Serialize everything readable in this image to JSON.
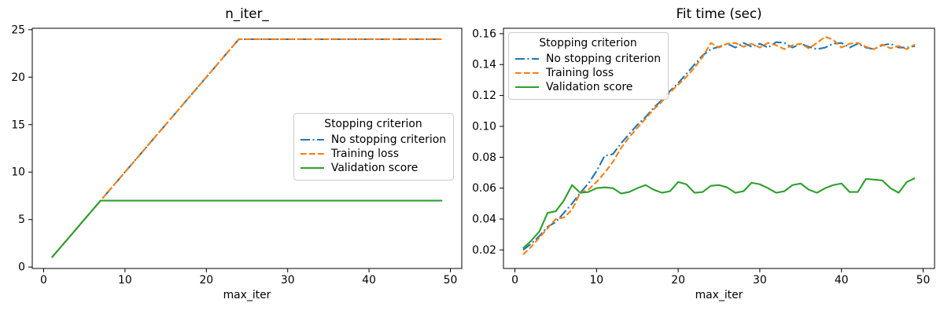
{
  "figure": {
    "kind": "matplotlib-figure",
    "background": "#ffffff",
    "spine_color": "#000000"
  },
  "legend": {
    "title": "Stopping criterion",
    "entries": [
      "No stopping criterion",
      "Training loss",
      "Validation score"
    ]
  },
  "chart_data": [
    {
      "type": "line",
      "title": "n_iter_",
      "xlabel": "max_iter",
      "ylabel": "",
      "grid": false,
      "xlim": [
        -1.4,
        51.4
      ],
      "ylim": [
        -0.15,
        25.15
      ],
      "xticks": [
        0,
        10,
        20,
        30,
        40,
        50
      ],
      "xtick_labels": [
        "0",
        "10",
        "20",
        "30",
        "40",
        "50"
      ],
      "yticks": [
        0,
        5,
        10,
        15,
        20,
        25
      ],
      "ytick_labels": [
        "0",
        "5",
        "10",
        "15",
        "20",
        "25"
      ],
      "legend_location": "center right",
      "x": [
        1,
        2,
        3,
        4,
        5,
        6,
        7,
        8,
        9,
        10,
        11,
        12,
        13,
        14,
        15,
        16,
        17,
        18,
        19,
        20,
        21,
        22,
        23,
        24,
        25,
        26,
        27,
        28,
        29,
        30,
        31,
        32,
        33,
        34,
        35,
        36,
        37,
        38,
        39,
        40,
        41,
        42,
        43,
        44,
        45,
        46,
        47,
        48,
        49
      ],
      "series": [
        {
          "name": "No stopping criterion",
          "color": "#1f77b4",
          "linestyle": "dashdot",
          "values": [
            1,
            2,
            3,
            4,
            5,
            6,
            7,
            8,
            9,
            10,
            11,
            12,
            13,
            14,
            15,
            16,
            17,
            18,
            19,
            20,
            21,
            22,
            23,
            24,
            24,
            24,
            24,
            24,
            24,
            24,
            24,
            24,
            24,
            24,
            24,
            24,
            24,
            24,
            24,
            24,
            24,
            24,
            24,
            24,
            24,
            24,
            24,
            24,
            24
          ]
        },
        {
          "name": "Training loss",
          "color": "#ff7f0e",
          "linestyle": "dashed",
          "values": [
            1,
            2,
            3,
            4,
            5,
            6,
            7,
            8,
            9,
            10,
            11,
            12,
            13,
            14,
            15,
            16,
            17,
            18,
            19,
            20,
            21,
            22,
            23,
            24,
            24,
            24,
            24,
            24,
            24,
            24,
            24,
            24,
            24,
            24,
            24,
            24,
            24,
            24,
            24,
            24,
            24,
            24,
            24,
            24,
            24,
            24,
            24,
            24,
            24
          ]
        },
        {
          "name": "Validation score",
          "color": "#2ca02c",
          "linestyle": "solid",
          "values": [
            1,
            2,
            3,
            4,
            5,
            6,
            7,
            7,
            7,
            7,
            7,
            7,
            7,
            7,
            7,
            7,
            7,
            7,
            7,
            7,
            7,
            7,
            7,
            7,
            7,
            7,
            7,
            7,
            7,
            7,
            7,
            7,
            7,
            7,
            7,
            7,
            7,
            7,
            7,
            7,
            7,
            7,
            7,
            7,
            7,
            7,
            7,
            7,
            7
          ]
        }
      ]
    },
    {
      "type": "line",
      "title": "Fit time (sec)",
      "xlabel": "max_iter",
      "ylabel": "",
      "grid": false,
      "xlim": [
        -1.4,
        51.4
      ],
      "ylim": [
        0.008,
        0.1635
      ],
      "xticks": [
        0,
        10,
        20,
        30,
        40,
        50
      ],
      "xtick_labels": [
        "0",
        "10",
        "20",
        "30",
        "40",
        "50"
      ],
      "yticks": [
        0.02,
        0.04,
        0.06,
        0.08,
        0.1,
        0.12,
        0.14,
        0.16
      ],
      "ytick_labels": [
        "0.02",
        "0.04",
        "0.06",
        "0.08",
        "0.10",
        "0.12",
        "0.14",
        "0.16"
      ],
      "legend_location": "upper left",
      "x": [
        1,
        2,
        3,
        4,
        5,
        6,
        7,
        8,
        9,
        10,
        11,
        12,
        13,
        14,
        15,
        16,
        17,
        18,
        19,
        20,
        21,
        22,
        23,
        24,
        25,
        26,
        27,
        28,
        29,
        30,
        31,
        32,
        33,
        34,
        35,
        36,
        37,
        38,
        39,
        40,
        41,
        42,
        43,
        44,
        45,
        46,
        47,
        48,
        49
      ],
      "series": [
        {
          "name": "No stopping criterion",
          "color": "#1f77b4",
          "linestyle": "dashdot",
          "values": [
            0.02,
            0.024,
            0.029,
            0.035,
            0.038,
            0.044,
            0.05,
            0.057,
            0.063,
            0.071,
            0.081,
            0.082,
            0.089,
            0.095,
            0.101,
            0.106,
            0.112,
            0.117,
            0.123,
            0.128,
            0.134,
            0.14,
            0.146,
            0.15,
            0.1515,
            0.1535,
            0.151,
            0.154,
            0.1515,
            0.1535,
            0.151,
            0.1545,
            0.154,
            0.151,
            0.1535,
            0.1515,
            0.15,
            0.151,
            0.1535,
            0.154,
            0.151,
            0.1535,
            0.151,
            0.15,
            0.1525,
            0.1535,
            0.151,
            0.151,
            0.152
          ]
        },
        {
          "name": "Training loss",
          "color": "#ff7f0e",
          "linestyle": "dashed",
          "values": [
            0.017,
            0.022,
            0.028,
            0.034,
            0.04,
            0.041,
            0.046,
            0.057,
            0.059,
            0.064,
            0.07,
            0.077,
            0.086,
            0.093,
            0.099,
            0.105,
            0.111,
            0.116,
            0.122,
            0.127,
            0.132,
            0.138,
            0.145,
            0.154,
            0.151,
            0.1535,
            0.154,
            0.1515,
            0.1535,
            0.151,
            0.154,
            0.1525,
            0.15,
            0.1525,
            0.1535,
            0.1505,
            0.154,
            0.158,
            0.156,
            0.151,
            0.1535,
            0.154,
            0.1515,
            0.15,
            0.153,
            0.1505,
            0.152,
            0.15,
            0.153
          ]
        },
        {
          "name": "Validation score",
          "color": "#2ca02c",
          "linestyle": "solid",
          "values": [
            0.021,
            0.026,
            0.032,
            0.044,
            0.045,
            0.052,
            0.062,
            0.057,
            0.0575,
            0.06,
            0.0605,
            0.06,
            0.0565,
            0.0575,
            0.06,
            0.062,
            0.059,
            0.057,
            0.058,
            0.064,
            0.0625,
            0.057,
            0.0575,
            0.0615,
            0.062,
            0.0605,
            0.057,
            0.058,
            0.0635,
            0.0625,
            0.06,
            0.057,
            0.058,
            0.062,
            0.063,
            0.059,
            0.057,
            0.06,
            0.062,
            0.063,
            0.0575,
            0.0575,
            0.066,
            0.0655,
            0.065,
            0.06,
            0.057,
            0.064,
            0.0665
          ]
        }
      ]
    }
  ]
}
